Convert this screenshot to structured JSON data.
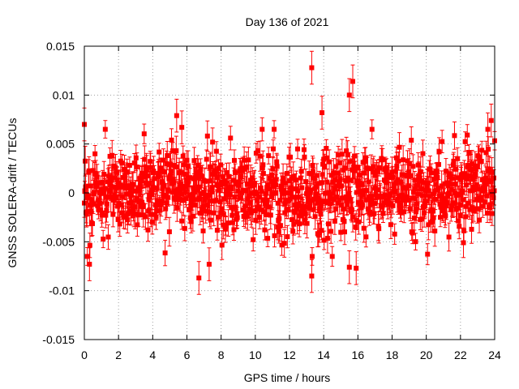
{
  "chart_data": {
    "type": "scatter",
    "title": "Day 136 of 2021",
    "xlabel": "GPS time / hours",
    "ylabel": "GNSS SOLERA-drift / TECUs",
    "xlim": [
      0,
      24
    ],
    "ylim": [
      -0.015,
      0.015
    ],
    "x_ticks": [
      "0",
      "2",
      "4",
      "6",
      "8",
      "10",
      "12",
      "14",
      "16",
      "18",
      "20",
      "22",
      "24"
    ],
    "y_ticks": [
      "0.015",
      "0.01",
      "0.005",
      "0",
      "-0.005",
      "-0.01",
      "-0.015"
    ],
    "grid": true,
    "error_bars": true,
    "sampling_interval_hours": 0.025,
    "typical_spread_std": 0.0022,
    "typical_error_bar": 0.0012,
    "notable_points": [
      {
        "x": 0.0,
        "y": 0.007
      },
      {
        "x": 0.3,
        "y": -0.0073
      },
      {
        "x": 5.4,
        "y": 0.0079
      },
      {
        "x": 5.7,
        "y": 0.0067
      },
      {
        "x": 6.7,
        "y": -0.0087
      },
      {
        "x": 7.3,
        "y": -0.0073
      },
      {
        "x": 13.3,
        "y": 0.0128
      },
      {
        "x": 13.3,
        "y": -0.0085
      },
      {
        "x": 13.9,
        "y": 0.0082
      },
      {
        "x": 15.5,
        "y": 0.01
      },
      {
        "x": 15.7,
        "y": 0.0114
      },
      {
        "x": 15.5,
        "y": -0.0076
      },
      {
        "x": 15.9,
        "y": -0.0077
      },
      {
        "x": 23.8,
        "y": 0.0074
      },
      {
        "x": 23.6,
        "y": 0.0065
      }
    ],
    "colors": {
      "points": "#ff0000",
      "grid": "#a0a0a0",
      "axes": "#000000"
    }
  }
}
